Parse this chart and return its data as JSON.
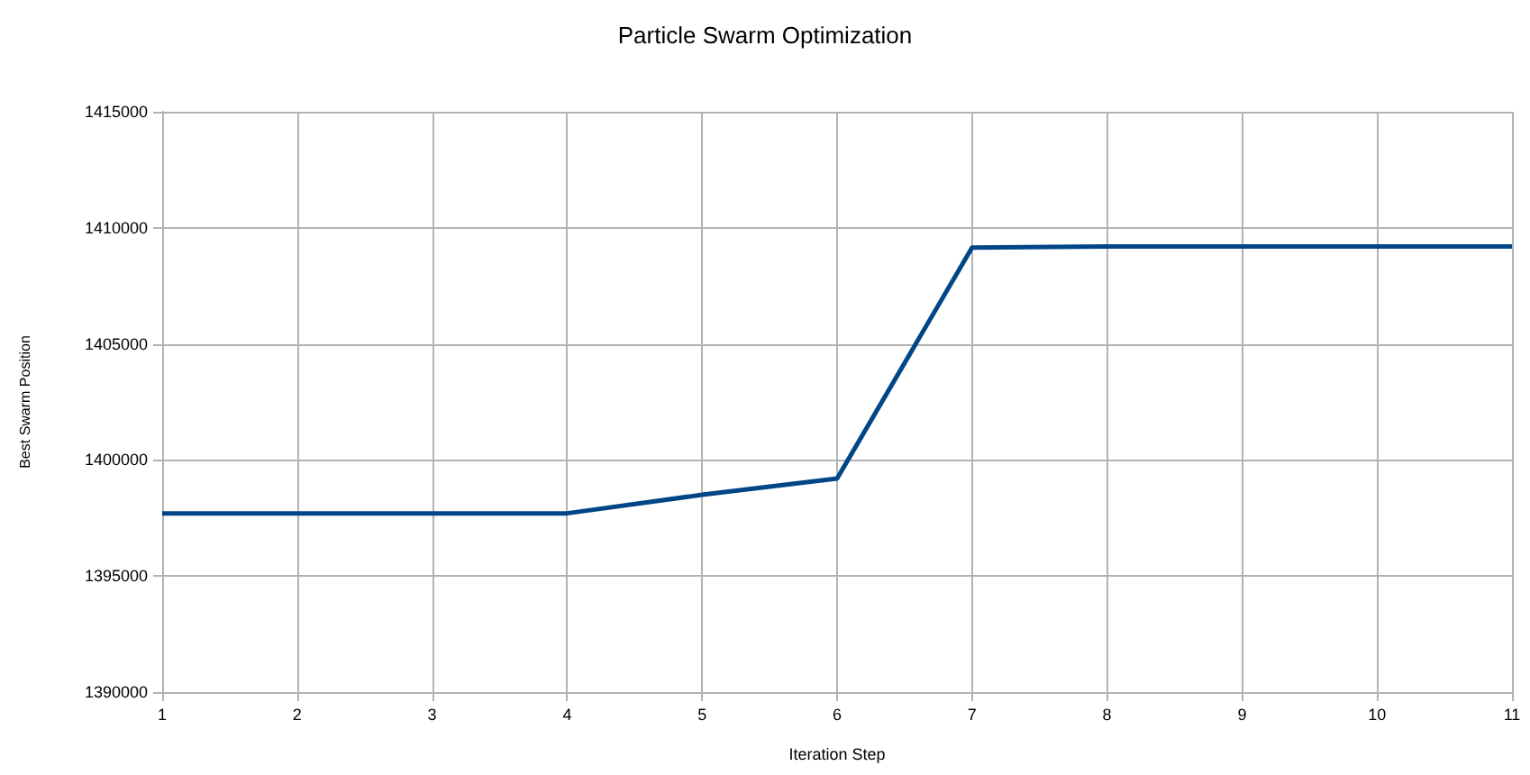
{
  "chart_data": {
    "type": "line",
    "title": "Particle Swarm Optimization",
    "xlabel": "Iteration Step",
    "ylabel": "Best Swarm Position",
    "x": [
      1,
      2,
      3,
      4,
      5,
      6,
      7,
      8,
      9,
      10,
      11
    ],
    "series": [
      {
        "color": "#004586",
        "values": [
          1397700,
          1397700,
          1397700,
          1397700,
          1398500,
          1399200,
          1409150,
          1409200,
          1409200,
          1409200,
          1409200
        ]
      }
    ],
    "xlim": [
      1,
      11
    ],
    "xticks": [
      1,
      2,
      3,
      4,
      5,
      6,
      7,
      8,
      9,
      10,
      11
    ],
    "ylim": [
      1390000,
      1415000
    ],
    "yticks": [
      1390000,
      1395000,
      1400000,
      1405000,
      1410000,
      1415000
    ],
    "grid": true,
    "marker": "none",
    "line_style": "solid"
  }
}
